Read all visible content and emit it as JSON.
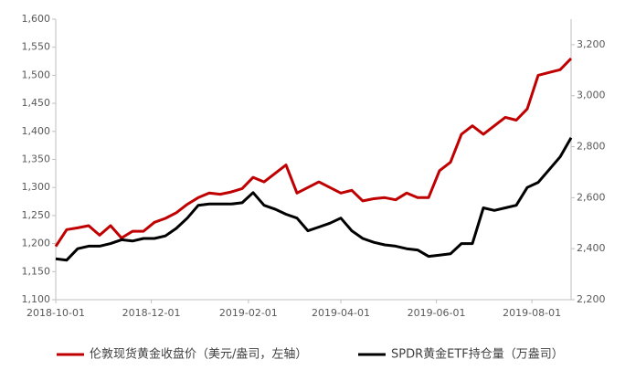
{
  "chart_data": {
    "type": "line",
    "x": [
      "2018-10-01",
      "2018-10-08",
      "2018-10-15",
      "2018-10-22",
      "2018-10-29",
      "2018-11-05",
      "2018-11-12",
      "2018-11-19",
      "2018-11-26",
      "2018-12-03",
      "2018-12-10",
      "2018-12-17",
      "2018-12-24",
      "2018-12-31",
      "2019-01-07",
      "2019-01-14",
      "2019-01-21",
      "2019-01-28",
      "2019-02-04",
      "2019-02-11",
      "2019-02-18",
      "2019-02-25",
      "2019-03-04",
      "2019-03-11",
      "2019-03-18",
      "2019-03-25",
      "2019-04-01",
      "2019-04-08",
      "2019-04-15",
      "2019-04-22",
      "2019-04-29",
      "2019-05-06",
      "2019-05-13",
      "2019-05-20",
      "2019-05-27",
      "2019-06-03",
      "2019-06-10",
      "2019-06-17",
      "2019-06-24",
      "2019-07-01",
      "2019-07-08",
      "2019-07-15",
      "2019-07-22",
      "2019-07-29",
      "2019-08-05",
      "2019-08-12",
      "2019-08-19",
      "2019-08-26"
    ],
    "xlim": [
      "2018-10-01",
      "2019-08-26"
    ],
    "xticks": [
      "2018-10-01",
      "2018-12-01",
      "2019-02-01",
      "2019-04-01",
      "2019-06-01",
      "2019-08-01"
    ],
    "series": [
      {
        "name": "伦敦现货黄金收盘价（美元/盎司，左轴）",
        "color": "#c00000",
        "axis": "y",
        "values": [
          1195,
          1225,
          1228,
          1232,
          1215,
          1232,
          1210,
          1222,
          1222,
          1238,
          1245,
          1255,
          1270,
          1282,
          1290,
          1288,
          1292,
          1298,
          1318,
          1310,
          1325,
          1340,
          1290,
          1300,
          1310,
          1300,
          1290,
          1295,
          1276,
          1280,
          1282,
          1278,
          1290,
          1282,
          1282,
          1330,
          1345,
          1395,
          1410,
          1395,
          1410,
          1425,
          1420,
          1440,
          1500,
          1505,
          1510,
          1530
        ]
      },
      {
        "name": "SPDR黄金ETF持仓量（万盎司）",
        "color": "#000000",
        "axis": "y2",
        "values": [
          2360,
          2355,
          2400,
          2410,
          2410,
          2420,
          2435,
          2430,
          2440,
          2440,
          2450,
          2480,
          2520,
          2570,
          2575,
          2575,
          2575,
          2580,
          2620,
          2570,
          2555,
          2535,
          2520,
          2470,
          2485,
          2500,
          2520,
          2470,
          2440,
          2425,
          2415,
          2410,
          2400,
          2395,
          2370,
          2375,
          2380,
          2420,
          2420,
          2560,
          2550,
          2560,
          2570,
          2640,
          2660,
          2710,
          2760,
          2835
        ]
      }
    ],
    "ylim": [
      1100,
      1600
    ],
    "yticks": [
      {
        "value": 1100,
        "label": "1,100"
      },
      {
        "value": 1150,
        "label": "1,150"
      },
      {
        "value": 1200,
        "label": "1,200"
      },
      {
        "value": 1250,
        "label": "1,250"
      },
      {
        "value": 1300,
        "label": "1,300"
      },
      {
        "value": 1350,
        "label": "1,350"
      },
      {
        "value": 1400,
        "label": "1,400"
      },
      {
        "value": 1450,
        "label": "1,450"
      },
      {
        "value": 1500,
        "label": "1,500"
      },
      {
        "value": 1550,
        "label": "1,550"
      },
      {
        "value": 1600,
        "label": "1,600"
      }
    ],
    "y2lim": [
      2200,
      3300
    ],
    "y2ticks": [
      {
        "value": 2200,
        "label": "2,200"
      },
      {
        "value": 2400,
        "label": "2,400"
      },
      {
        "value": 2600,
        "label": "2,600"
      },
      {
        "value": 2800,
        "label": "2,800"
      },
      {
        "value": 3000,
        "label": "3,000"
      },
      {
        "value": 3200,
        "label": "3,200"
      }
    ]
  }
}
